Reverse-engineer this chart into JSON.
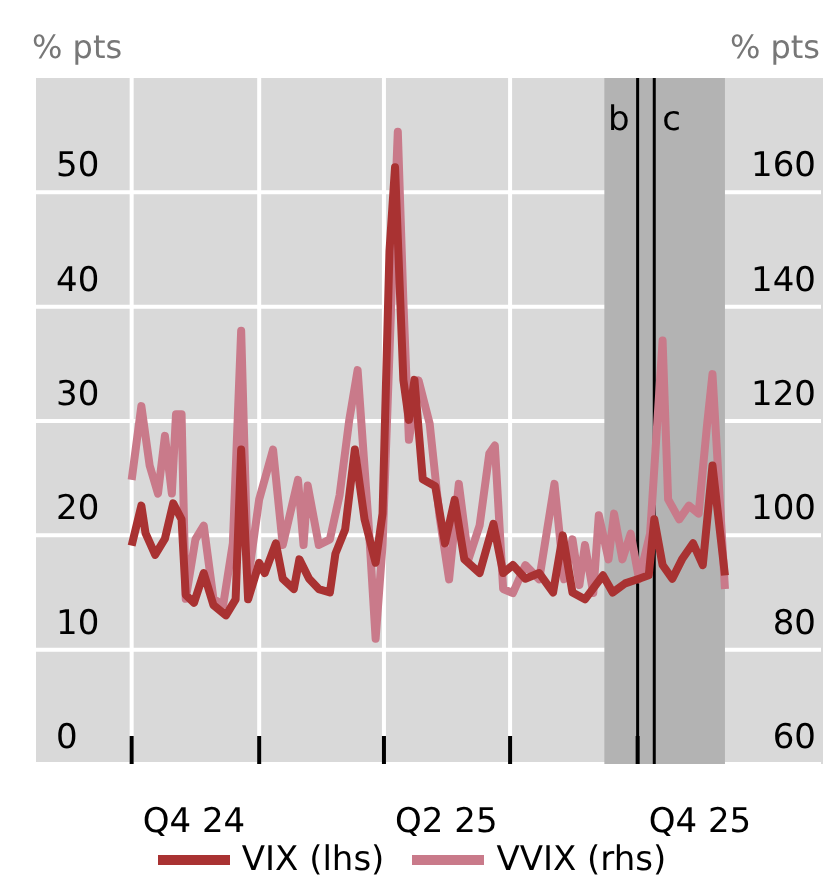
{
  "chart_data": {
    "type": "line",
    "ylabel": "% pts",
    "y2label": "% pts",
    "xlim": [
      "2024-07-24",
      "2026-02-11"
    ],
    "xticks": [
      {
        "value": "2024-10-01",
        "label": null
      },
      {
        "value": "2024-11-15",
        "label": "Q4 24"
      },
      {
        "value": "2025-01-01",
        "label": null
      },
      {
        "value": "2025-04-01",
        "label": null
      },
      {
        "value": "2025-05-16",
        "label": "Q2 25"
      },
      {
        "value": "2025-07-01",
        "label": null
      },
      {
        "value": "2025-10-01",
        "label": null
      },
      {
        "value": "2025-11-15",
        "label": "Q4 25"
      }
    ],
    "ylim": [
      0,
      60
    ],
    "yticks": [
      0,
      10,
      20,
      30,
      40,
      50
    ],
    "y2lim": [
      60,
      180
    ],
    "y2ticks": [
      60,
      80,
      100,
      120,
      140,
      160
    ],
    "grid": true,
    "legend": "bottom",
    "marker": "none",
    "line_style": "solid",
    "bands": [
      {
        "axis": "x",
        "from": "2025-09-07",
        "to": "2025-12-03",
        "color": "#b3b3b3"
      }
    ],
    "ref_lines": [
      {
        "axis": "x",
        "value": "2025-10-01",
        "label": "b",
        "color": "#000000"
      },
      {
        "axis": "x",
        "value": "2025-10-13",
        "label": "c",
        "color": "#000000"
      }
    ],
    "series": [
      {
        "name": "VIX (lhs)",
        "color": "#a93232",
        "x": [
          "2024-10-01",
          "2024-10-08",
          "2024-10-11",
          "2024-10-18",
          "2024-10-25",
          "2024-10-31",
          "2024-11-06",
          "2024-11-09",
          "2024-11-15",
          "2024-11-22",
          "2024-11-29",
          "2024-12-08",
          "2024-12-15",
          "2024-12-19",
          "2024-12-24",
          "2025-01-01",
          "2025-01-05",
          "2025-01-13",
          "2025-01-18",
          "2025-01-26",
          "2025-01-30",
          "2025-02-06",
          "2025-02-13",
          "2025-02-21",
          "2025-02-25",
          "2025-03-04",
          "2025-03-11",
          "2025-03-18",
          "2025-03-26",
          "2025-03-31",
          "2025-04-05",
          "2025-04-09",
          "2025-04-15",
          "2025-04-19",
          "2025-04-23",
          "2025-04-29",
          "2025-05-08",
          "2025-05-15",
          "2025-05-22",
          "2025-05-29",
          "2025-06-09",
          "2025-06-19",
          "2025-06-26",
          "2025-07-03",
          "2025-07-12",
          "2025-07-22",
          "2025-08-01",
          "2025-08-08",
          "2025-08-15",
          "2025-08-24",
          "2025-09-06",
          "2025-09-13",
          "2025-09-22",
          "2025-10-02",
          "2025-10-09",
          "2025-10-13",
          "2025-10-19",
          "2025-10-26",
          "2025-11-02",
          "2025-11-10",
          "2025-11-17",
          "2025-11-24",
          "2025-12-03"
        ],
        "values": [
          19.1,
          22.6,
          20.2,
          18.3,
          19.7,
          22.8,
          21.4,
          14.8,
          14.1,
          16.7,
          13.9,
          13.0,
          14.4,
          27.5,
          14.4,
          17.6,
          16.7,
          19.3,
          16.2,
          15.3,
          17.9,
          16.2,
          15.3,
          15.0,
          18.4,
          20.5,
          27.5,
          21.4,
          17.6,
          21.9,
          44.9,
          52.2,
          33.6,
          30.1,
          33.6,
          24.9,
          24.3,
          19.3,
          23.1,
          17.9,
          16.7,
          21.0,
          16.7,
          17.4,
          16.2,
          16.7,
          15.0,
          20.0,
          15.0,
          14.4,
          16.5,
          15.0,
          15.8,
          16.2,
          16.5,
          21.4,
          17.4,
          16.2,
          17.9,
          19.3,
          17.4,
          26.1,
          16.5
        ]
      },
      {
        "name": "VVIX (rhs)",
        "color": "#c97a8a",
        "axis": "y2",
        "x": [
          "2024-10-01",
          "2024-10-08",
          "2024-10-14",
          "2024-10-20",
          "2024-10-25",
          "2024-10-30",
          "2024-11-02",
          "2024-11-06",
          "2024-11-09",
          "2024-11-16",
          "2024-11-22",
          "2024-11-29",
          "2024-12-06",
          "2024-12-13",
          "2024-12-19",
          "2024-12-24",
          "2025-01-01",
          "2025-01-11",
          "2025-01-18",
          "2025-01-29",
          "2025-02-02",
          "2025-02-05",
          "2025-02-13",
          "2025-02-21",
          "2025-02-28",
          "2025-03-07",
          "2025-03-13",
          "2025-03-21",
          "2025-03-26",
          "2025-03-31",
          "2025-04-08",
          "2025-04-11",
          "2025-04-15",
          "2025-04-19",
          "2025-04-26",
          "2025-05-04",
          "2025-05-11",
          "2025-05-18",
          "2025-05-25",
          "2025-06-01",
          "2025-06-09",
          "2025-06-16",
          "2025-06-20",
          "2025-06-26",
          "2025-07-03",
          "2025-07-12",
          "2025-07-22",
          "2025-08-02",
          "2025-08-09",
          "2025-08-15",
          "2025-08-20",
          "2025-08-24",
          "2025-08-30",
          "2025-09-03",
          "2025-09-10",
          "2025-09-14",
          "2025-09-20",
          "2025-09-26",
          "2025-10-02",
          "2025-10-10",
          "2025-10-19",
          "2025-10-23",
          "2025-10-31",
          "2025-11-07",
          "2025-11-14",
          "2025-11-20",
          "2025-11-24",
          "2025-12-03"
        ],
        "values": [
          109.7,
          122.6,
          112.2,
          107.3,
          117.4,
          107.3,
          121.2,
          121.2,
          88.9,
          99.3,
          101.7,
          88.9,
          87.8,
          98.6,
          135.8,
          92.3,
          106.3,
          115.0,
          98.3,
          109.7,
          98.3,
          108.7,
          98.3,
          99.3,
          107.0,
          120.2,
          128.9,
          101.7,
          81.9,
          98.3,
          152.2,
          170.6,
          141.0,
          116.7,
          127.1,
          119.5,
          103.5,
          92.3,
          109.0,
          95.8,
          101.7,
          114.3,
          115.7,
          90.6,
          89.9,
          94.8,
          92.3,
          109.0,
          92.3,
          99.3,
          91.3,
          98.3,
          89.9,
          103.5,
          95.8,
          103.8,
          95.8,
          100.3,
          92.3,
          100.3,
          134.1,
          106.3,
          102.8,
          105.2,
          103.8,
          119.1,
          128.2,
          90.6
        ]
      }
    ]
  }
}
